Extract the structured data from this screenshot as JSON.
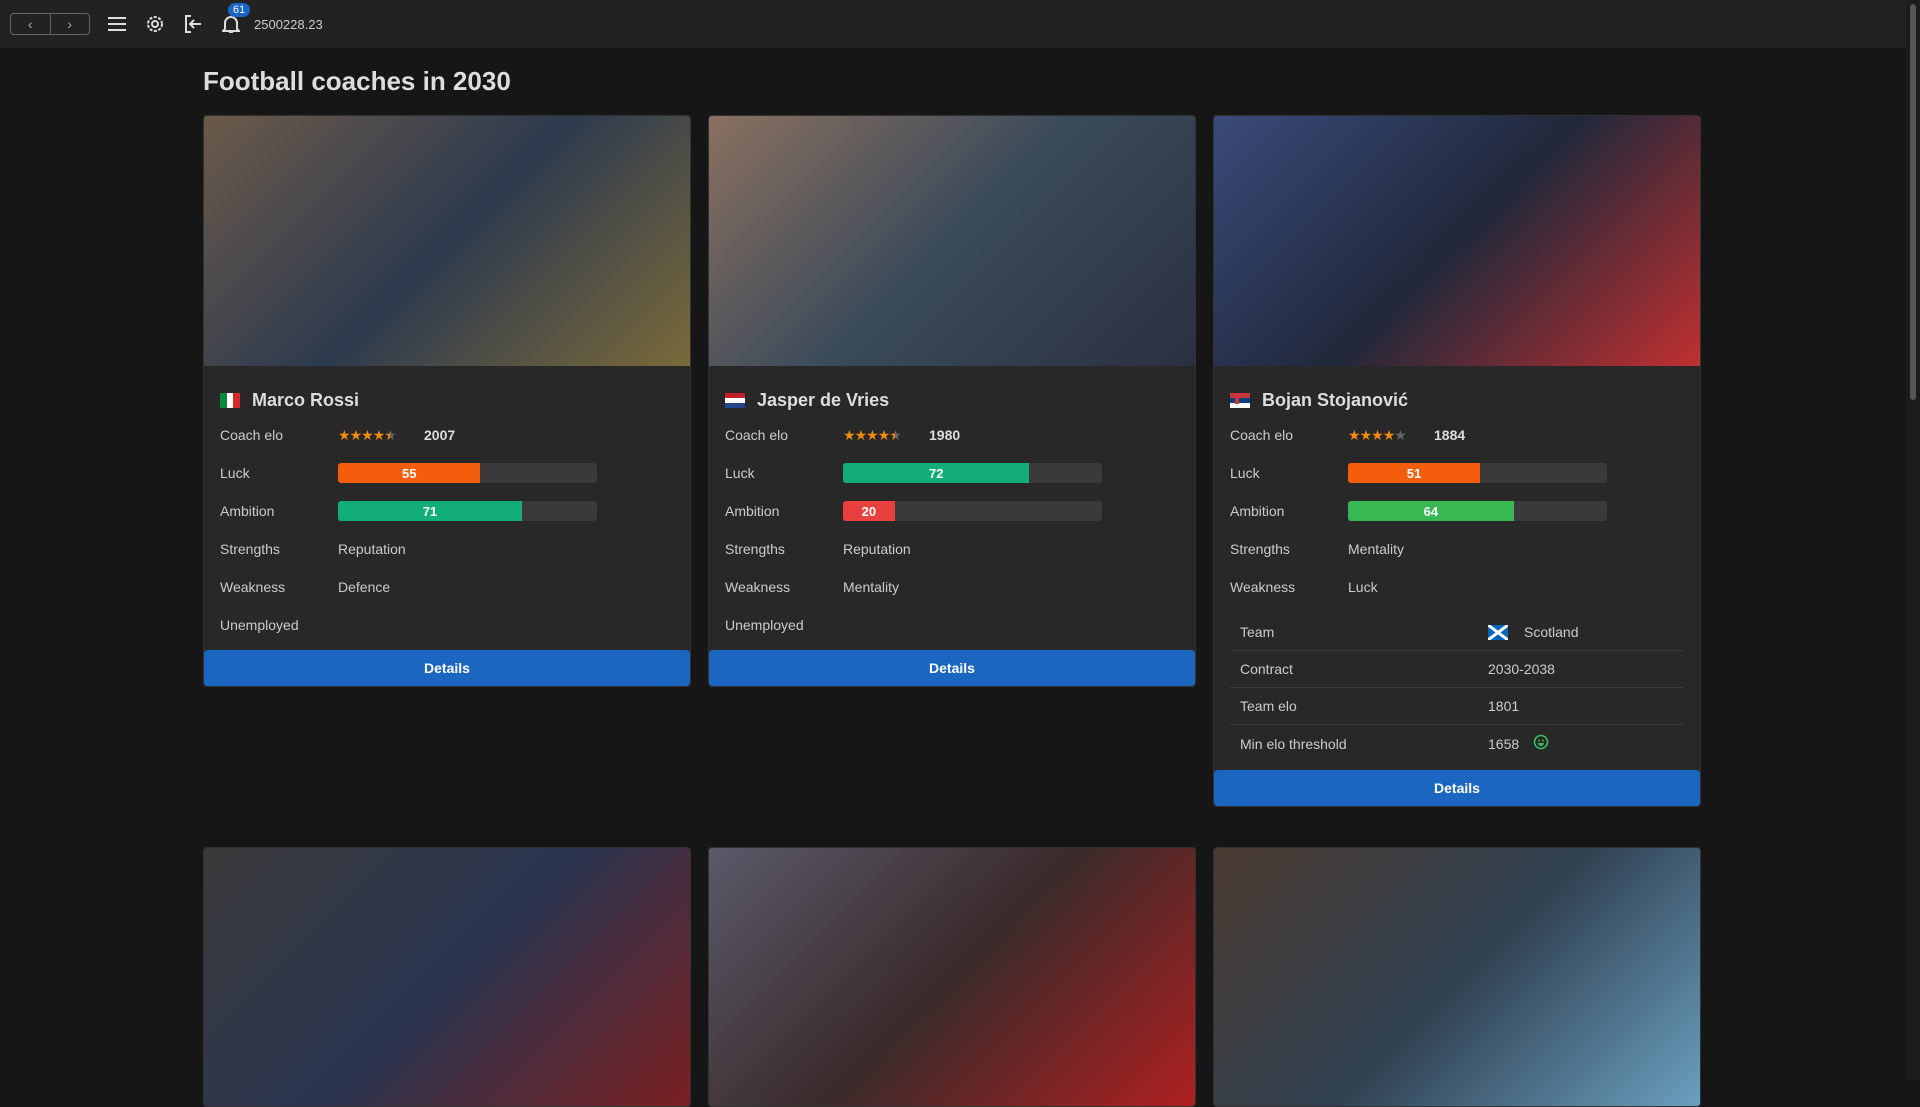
{
  "topbar": {
    "badge_count": "61",
    "balance": "2500228.23"
  },
  "page_title": "Football coaches in 2030",
  "labels": {
    "coach_elo": "Coach elo",
    "luck": "Luck",
    "ambition": "Ambition",
    "strengths": "Strengths",
    "weakness": "Weakness",
    "details": "Details",
    "team": "Team",
    "contract": "Contract",
    "team_elo": "Team elo",
    "min_elo": "Min elo threshold"
  },
  "colors": {
    "orange": "#f45d0c",
    "teal": "#13ae77",
    "green": "#37b853",
    "red": "#e8413d",
    "button": "#1a66c0"
  },
  "coaches": [
    {
      "name": "Marco Rossi",
      "flag": "italy",
      "stars": 4.5,
      "elo": "2007",
      "luck": 55,
      "luck_color": "#f45d0c",
      "ambition": 71,
      "ambition_color": "#13ae77",
      "strengths": "Reputation",
      "weakness": "Defence",
      "status": "Unemployed"
    },
    {
      "name": "Jasper de Vries",
      "flag": "netherlands",
      "stars": 4.5,
      "elo": "1980",
      "luck": 72,
      "luck_color": "#13ae77",
      "ambition": 20,
      "ambition_color": "#e8413d",
      "strengths": "Reputation",
      "weakness": "Mentality",
      "status": "Unemployed"
    },
    {
      "name": "Bojan Stojanović",
      "flag": "serbia",
      "stars": 4,
      "elo": "1884",
      "luck": 51,
      "luck_color": "#f45d0c",
      "ambition": 64,
      "ambition_color": "#37b853",
      "strengths": "Mentality",
      "weakness": "Luck",
      "team": {
        "name": "Scotland",
        "flag": "scotland",
        "contract": "2030-2038",
        "team_elo": "1801",
        "min_elo": "1658",
        "min_elo_icon": "smiley-icon"
      }
    }
  ]
}
